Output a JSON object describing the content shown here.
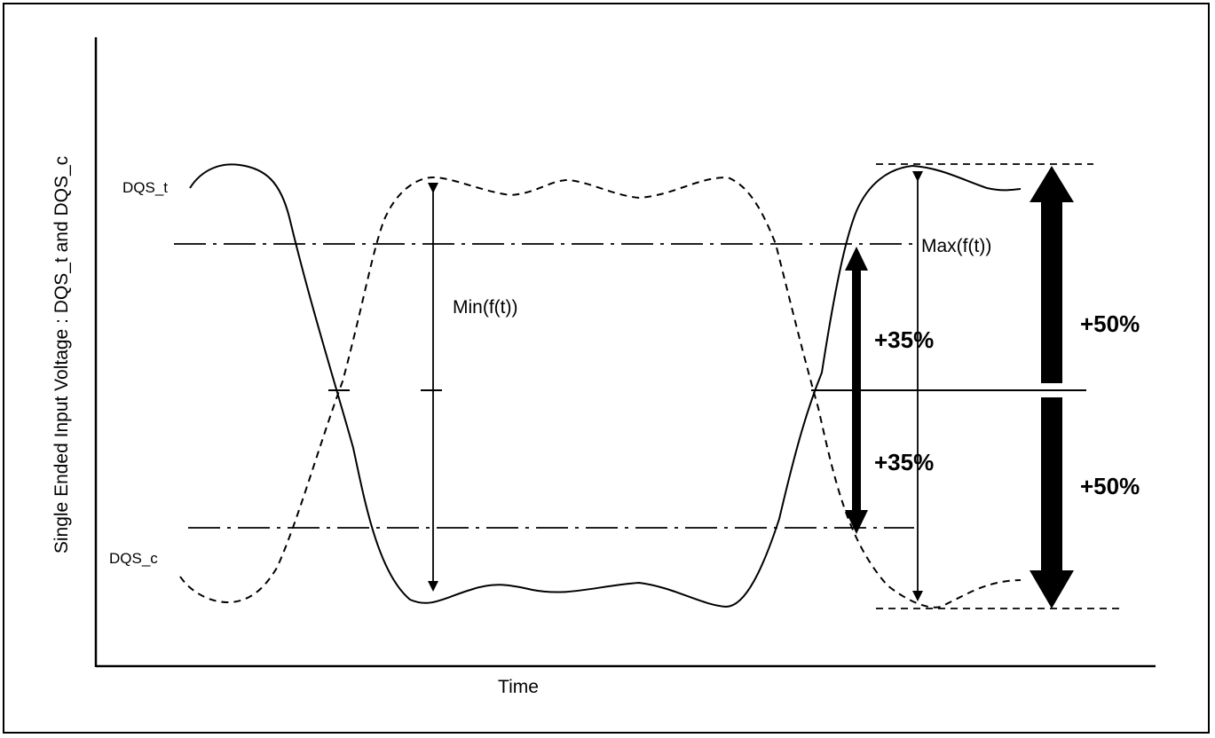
{
  "axes": {
    "y_label": "Single Ended Input Voltage : DQS_t and DQS_c",
    "x_label": "Time"
  },
  "signals": {
    "dqs_t_label": "DQS_t",
    "dqs_c_label": "DQS_c"
  },
  "annotations": {
    "min_label": "Min(f(t))",
    "max_label": "Max(f(t))",
    "upper_35": "+35%",
    "lower_35": "+35%",
    "upper_50": "+50%",
    "lower_50": "+50%"
  }
}
